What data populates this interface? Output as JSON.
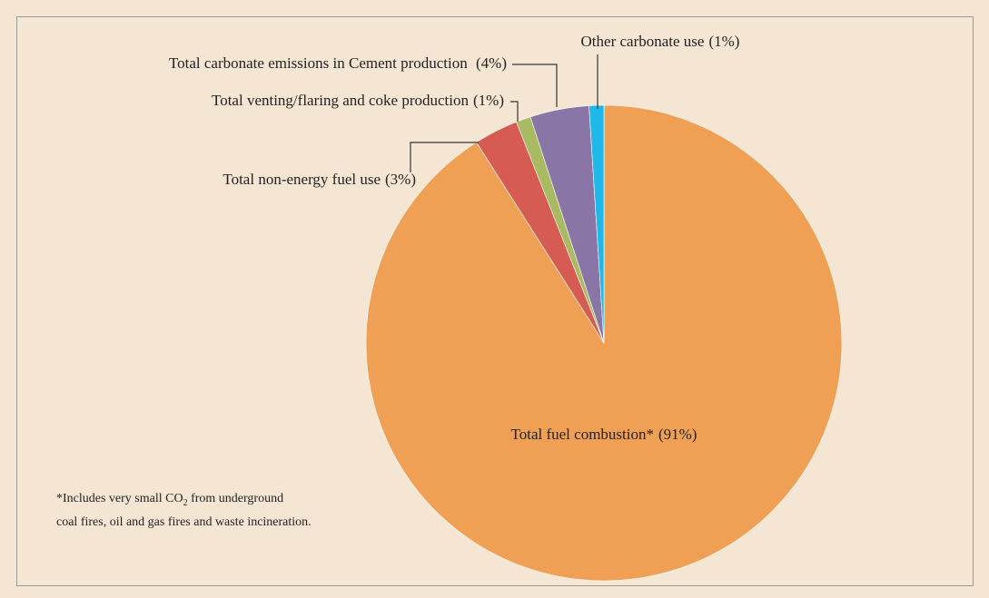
{
  "chart_data": {
    "type": "pie",
    "categories": [
      "Total fuel combustion*",
      "Total non-energy fuel use",
      "Total venting/flaring and coke production",
      "Total carbonate emissions in Cement production ",
      "Other carbonate use"
    ],
    "values": [
      91,
      3,
      1,
      4,
      1
    ],
    "value_labels": [
      "(91%)",
      "(3%)",
      "(1%)",
      "(4%)",
      "(1%)"
    ],
    "colors": [
      "#f0a055",
      "#d65b52",
      "#a8bb63",
      "#8a76a6",
      "#1fb8e8"
    ],
    "footnote": [
      "*Includes very small CO",
      "2",
      " from underground",
      "coal fires, oil and gas fires and waste incineration."
    ]
  }
}
